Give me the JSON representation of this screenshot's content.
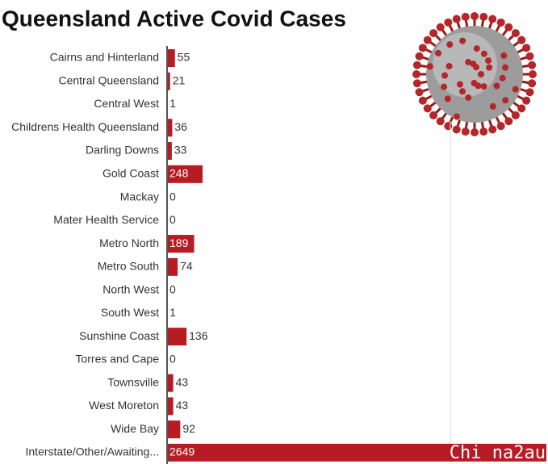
{
  "chart_data": {
    "type": "bar",
    "orientation": "horizontal",
    "title": "Queensland Active Covid Cases",
    "categories": [
      "Cairns and Hinterland",
      "Central Queensland",
      "Central West",
      "Childrens Health Queensland",
      "Darling Downs",
      "Gold Coast",
      "Mackay",
      "Mater Health Service",
      "Metro North",
      "Metro South",
      "North West",
      "South West",
      "Sunshine Coast",
      "Torres and Cape",
      "Townsville",
      "West Moreton",
      "Wide Bay",
      "Interstate/Other/Awaiting..."
    ],
    "values": [
      55,
      21,
      1,
      36,
      33,
      248,
      0,
      0,
      189,
      74,
      0,
      1,
      136,
      0,
      43,
      43,
      92,
      2649
    ],
    "color": "#b71c24",
    "xlim": [
      0,
      2649
    ],
    "watermark": "Chi na2au"
  }
}
